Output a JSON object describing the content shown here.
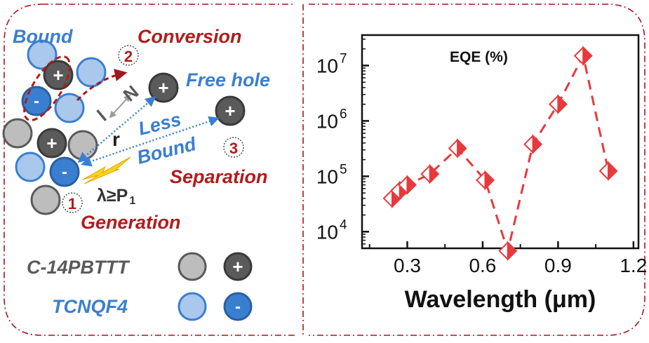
{
  "colors": {
    "frame": "#a3161d",
    "dark_red": "#b01c1c",
    "blue": "#3a7fcf",
    "gray_fill": "#bdbdbd",
    "dark_gray": "#5a5a5a",
    "light_blue": "#a9c8ec",
    "marker": "#e8393c",
    "yellow": "#ffd21a"
  },
  "diagram": {
    "labels": {
      "bound": "Bound",
      "conversion": "Conversion",
      "free_hole": "Free hole",
      "less": "Less",
      "bound2": "Bound",
      "separation": "Separation",
      "generation": "Generation",
      "r": "r",
      "l": "l",
      "n": "N",
      "lambda": "λ≥P",
      "lambda_sub": "1"
    },
    "steps": [
      "1",
      "2",
      "3"
    ],
    "charges": {
      "plus": "+",
      "minus": "-"
    },
    "legend": [
      {
        "name": "C-14PBTTT",
        "neutral": "gray-circle",
        "charged": "hole-circle"
      },
      {
        "name": "TCNQF4",
        "neutral": "light-blue-circle",
        "charged": "electron-circle"
      }
    ]
  },
  "chart_data": {
    "type": "scatter",
    "title": "EQE (%)",
    "xlabel": "Wavelength (μm)",
    "ylabel": "",
    "x_scale": "linear",
    "y_scale": "log",
    "xlim": [
      0.12,
      1.22
    ],
    "ylim_log10": [
      3.7,
      7.55
    ],
    "x_ticks": [
      0.3,
      0.6,
      0.9,
      1.2
    ],
    "x_tick_labels": [
      "0.3",
      "0.6",
      "0.9",
      "1.2"
    ],
    "y_ticks_log10": [
      4,
      5,
      6,
      7
    ],
    "y_tick_base": "10",
    "y_tick_exponents": [
      "4",
      "5",
      "6",
      "7"
    ],
    "marker": "half-filled diamond",
    "line_style": "dashed",
    "series": [
      {
        "name": "EQE",
        "x": [
          0.24,
          0.27,
          0.3,
          0.39,
          0.5,
          0.61,
          0.7,
          0.8,
          0.9,
          1.0,
          1.1
        ],
        "y": [
          40000,
          55000,
          70000,
          110000,
          320000,
          85000,
          4500,
          380000,
          2000000,
          15000000,
          125000
        ]
      }
    ]
  }
}
